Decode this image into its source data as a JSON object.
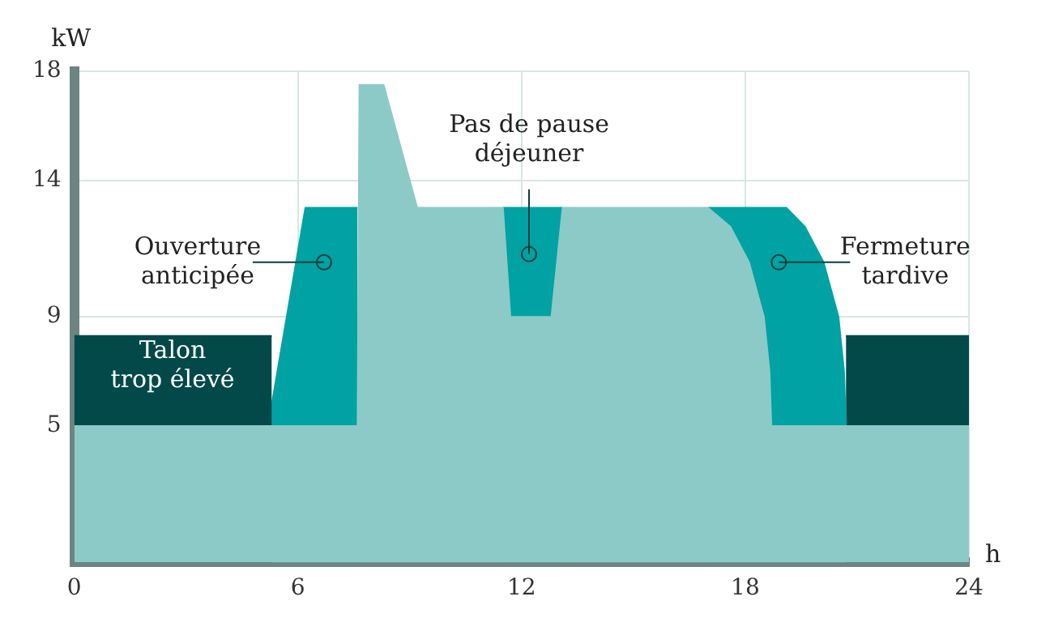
{
  "chart_data": {
    "type": "area",
    "ylabel": "kW",
    "xlabel": "h",
    "series": [
      {
        "color": "#8ccac7",
        "x": [
          0,
          7.6,
          7.65,
          8.3,
          9.2,
          11.5,
          11.7,
          12.8,
          13.1,
          17,
          17.6,
          18.1,
          18.5,
          18.65,
          18.7,
          24
        ],
        "values": [
          5,
          5,
          17.5,
          17.5,
          13,
          13,
          9,
          9,
          13,
          13,
          12.3,
          11,
          9,
          7,
          5,
          5
        ]
      },
      {
        "color": "#03494a",
        "x": [
          0,
          5.3
        ],
        "values": [
          8.3,
          8.3
        ]
      },
      {
        "color": "#00a2a3",
        "x": [
          5.2,
          6.2,
          7.6
        ],
        "values": [
          5,
          13,
          13
        ]
      },
      {
        "color": "#00a2a3",
        "x": [
          11.5,
          13.1
        ],
        "values": [
          13,
          13
        ]
      },
      {
        "color": "#00a2a3",
        "x": [
          17,
          19.1,
          19.6,
          20.1,
          20.5,
          20.65,
          20.7
        ],
        "values": [
          13,
          13,
          12.3,
          11,
          9,
          7,
          5
        ]
      },
      {
        "color": "#03494a",
        "x": [
          20.7,
          24
        ],
        "values": [
          8.3,
          8.3
        ]
      }
    ],
    "xlim": [
      0,
      24
    ],
    "xticks": [
      0,
      6,
      12,
      18,
      24
    ],
    "ylim": [
      0,
      18
    ],
    "yticks": [
      5,
      9,
      14,
      18
    ],
    "grid": true,
    "annotations": [
      "Talon\ntrop élevé",
      {
        "text": "Ouverture\nanticipée",
        "x": 6.7,
        "y": 11
      },
      {
        "text": "Pas de pause\ndéjeuner",
        "x": 12.2,
        "y": 11.3
      },
      {
        "text": "Fermeture\ntardive",
        "x": 18.9,
        "y": 11
      }
    ]
  }
}
